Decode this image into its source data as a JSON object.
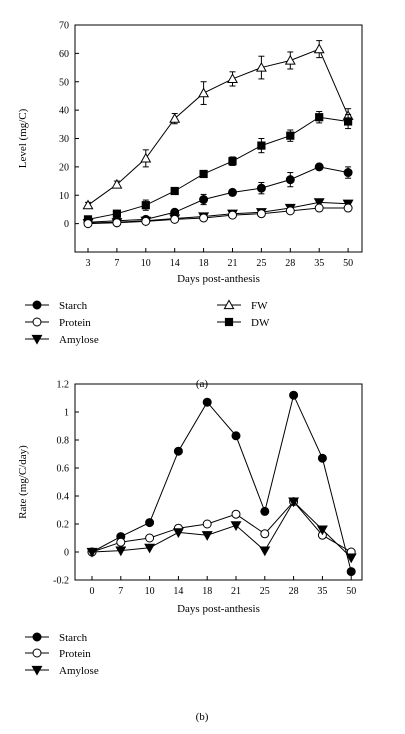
{
  "chart_data": [
    {
      "type": "line",
      "caption": "(a)",
      "xlabel": "Days post-anthesis",
      "ylabel": "Level (mg/C)",
      "categories": [
        "3",
        "7",
        "10",
        "14",
        "18",
        "21",
        "25",
        "28",
        "35",
        "50"
      ],
      "ylim": [
        -10,
        70
      ],
      "yticks": [
        0,
        10,
        20,
        30,
        40,
        50,
        60,
        70
      ],
      "error_bars": true,
      "series": [
        {
          "name": "FW",
          "marker": "triangle-up-open",
          "values": [
            6.5,
            13.8,
            23.0,
            37.0,
            46.0,
            51.0,
            55.0,
            57.5,
            61.5,
            38.0
          ],
          "errors": [
            1.0,
            1.2,
            3.0,
            1.8,
            4.0,
            2.5,
            4.0,
            3.0,
            3.0,
            2.5
          ]
        },
        {
          "name": "DW",
          "marker": "square-filled",
          "values": [
            1.5,
            3.5,
            6.5,
            11.5,
            17.5,
            22.0,
            27.5,
            31.0,
            37.5,
            36.0
          ],
          "errors": [
            0.6,
            0.8,
            1.8,
            0.8,
            1.0,
            1.5,
            2.5,
            2.0,
            2.0,
            2.5
          ]
        },
        {
          "name": "Starch",
          "marker": "circle-filled",
          "values": [
            0.5,
            1.0,
            1.5,
            4.0,
            8.5,
            11.0,
            12.5,
            15.5,
            20.0,
            18.0
          ],
          "errors": [
            0.5,
            0.5,
            0.8,
            1.0,
            1.8,
            1.0,
            2.0,
            2.5,
            1.0,
            2.0
          ]
        },
        {
          "name": "Amylose",
          "marker": "triangle-down-filled",
          "values": [
            0.2,
            0.5,
            1.0,
            1.8,
            2.5,
            3.5,
            4.0,
            5.5,
            7.5,
            7.0
          ],
          "errors": [
            0.3,
            0.3,
            0.3,
            0.5,
            0.5,
            0.5,
            0.8,
            0.8,
            1.0,
            1.0
          ]
        },
        {
          "name": "Protein",
          "marker": "circle-open",
          "values": [
            0.0,
            0.3,
            0.8,
            1.5,
            2.0,
            3.0,
            3.5,
            4.5,
            5.5,
            5.5
          ],
          "errors": [
            0.3,
            0.3,
            0.3,
            0.5,
            0.5,
            0.5,
            0.5,
            0.8,
            1.0,
            1.0
          ]
        }
      ],
      "legend": [
        "Starch",
        "Protein",
        "Amylose",
        "FW",
        "DW"
      ]
    },
    {
      "type": "line",
      "caption": "(b)",
      "xlabel": "Days post-anthesis",
      "ylabel": "Rate (mg/C/day)",
      "categories": [
        "0",
        "7",
        "10",
        "14",
        "18",
        "21",
        "25",
        "28",
        "35",
        "50"
      ],
      "ylim": [
        -0.2,
        1.2
      ],
      "yticks": [
        -0.2,
        0,
        0.2,
        0.4,
        0.6,
        0.8,
        1,
        1.2
      ],
      "series": [
        {
          "name": "Starch",
          "marker": "circle-filled",
          "values": [
            0.0,
            0.11,
            0.21,
            0.72,
            1.07,
            0.83,
            0.29,
            1.12,
            0.67,
            -0.14
          ]
        },
        {
          "name": "Protein",
          "marker": "circle-open",
          "values": [
            0.0,
            0.07,
            0.1,
            0.17,
            0.2,
            0.27,
            0.13,
            0.36,
            0.12,
            0.0
          ]
        },
        {
          "name": "Amylose",
          "marker": "triangle-down-filled",
          "values": [
            0.0,
            0.01,
            0.03,
            0.14,
            0.12,
            0.19,
            0.01,
            0.36,
            0.16,
            -0.04
          ]
        }
      ],
      "legend": [
        "Starch",
        "Protein",
        "Amylose"
      ]
    }
  ]
}
